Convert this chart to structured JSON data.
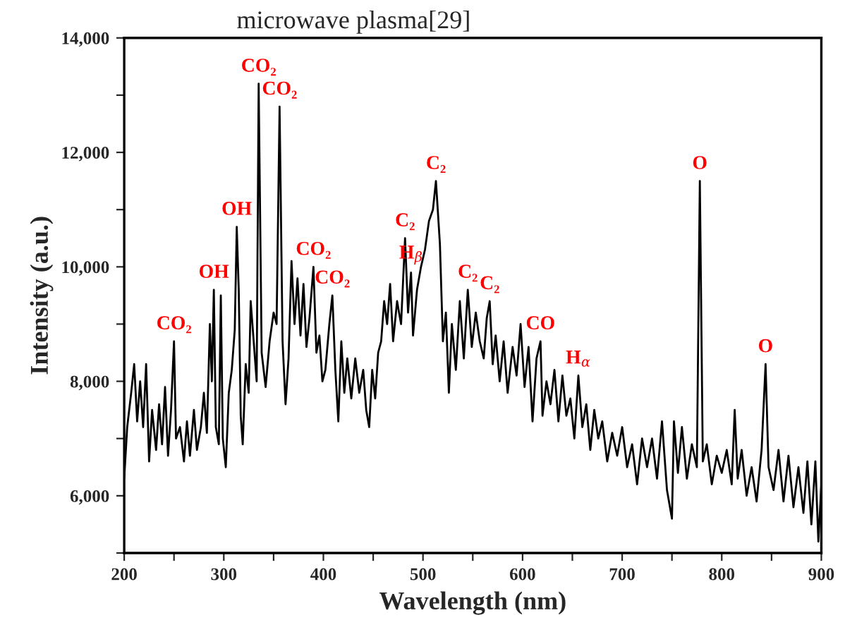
{
  "chart_data": {
    "type": "line",
    "title": "microwave plasma[29]",
    "xlabel": "Wavelength (nm)",
    "ylabel": "Intensity (a.u.)",
    "x": [
      200,
      203,
      207,
      210,
      213,
      216,
      219,
      222,
      225,
      228,
      232,
      235,
      238,
      241,
      244,
      247,
      250,
      252,
      256,
      260,
      263,
      266,
      270,
      273,
      277,
      280,
      283,
      286,
      288,
      290,
      292,
      295,
      297,
      299,
      302,
      305,
      308,
      311,
      313,
      315,
      317,
      319,
      322,
      325,
      327,
      330,
      333,
      335,
      338,
      342,
      346,
      350,
      353,
      356,
      359,
      362,
      365,
      368,
      371,
      374,
      377,
      380,
      383,
      386,
      390,
      393,
      396,
      399,
      402,
      406,
      409,
      412,
      415,
      418,
      421,
      424,
      428,
      432,
      436,
      440,
      443,
      446,
      449,
      452,
      455,
      458,
      461,
      464,
      467,
      470,
      474,
      478,
      482,
      485,
      488,
      490,
      494,
      498,
      502,
      506,
      510,
      513,
      517,
      520,
      523,
      526,
      529,
      533,
      537,
      541,
      545,
      549,
      553,
      557,
      561,
      564,
      567,
      570,
      573,
      577,
      581,
      585,
      590,
      594,
      598,
      602,
      606,
      610,
      614,
      618,
      620,
      624,
      628,
      632,
      636,
      640,
      644,
      648,
      652,
      656,
      660,
      664,
      668,
      672,
      676,
      680,
      685,
      690,
      695,
      700,
      705,
      710,
      715,
      720,
      725,
      730,
      735,
      740,
      745,
      750,
      752,
      756,
      760,
      765,
      770,
      775,
      778,
      781,
      785,
      790,
      795,
      800,
      805,
      810,
      813,
      816,
      820,
      825,
      830,
      835,
      840,
      844,
      847,
      852,
      857,
      862,
      867,
      872,
      877,
      882,
      886,
      890,
      894,
      897,
      900
    ],
    "series": [
      {
        "color": "#000000",
        "values": [
          6300,
          7200,
          7800,
          8300,
          7300,
          8000,
          7200,
          8300,
          6600,
          7500,
          6800,
          7600,
          6900,
          7900,
          6700,
          7500,
          8700,
          7000,
          7200,
          6600,
          7300,
          6700,
          7500,
          6800,
          7200,
          7800,
          7100,
          9000,
          8000,
          9600,
          7200,
          6900,
          9500,
          7000,
          6500,
          7800,
          8200,
          8900,
          10700,
          9600,
          7400,
          6900,
          8300,
          7800,
          9400,
          8700,
          8000,
          13200,
          8500,
          7900,
          8700,
          9200,
          9000,
          12800,
          8700,
          7600,
          8400,
          10100,
          9000,
          9800,
          8800,
          9700,
          8600,
          9100,
          10000,
          8500,
          8800,
          8000,
          8200,
          9000,
          9500,
          8200,
          7300,
          8700,
          7800,
          8400,
          7700,
          8400,
          7800,
          8200,
          7500,
          7200,
          8200,
          7700,
          8500,
          8700,
          9400,
          9000,
          9700,
          8700,
          9400,
          9000,
          10500,
          9200,
          9900,
          8800,
          9600,
          10000,
          10300,
          10800,
          11000,
          11500,
          10400,
          8700,
          9200,
          7800,
          9000,
          8200,
          9400,
          8400,
          9600,
          8600,
          9200,
          8700,
          8400,
          9100,
          9400,
          8300,
          8800,
          8000,
          8700,
          7800,
          8600,
          8100,
          9000,
          7900,
          8600,
          7300,
          8400,
          8700,
          7400,
          8000,
          7600,
          8200,
          7300,
          8100,
          7400,
          7700,
          7000,
          8100,
          7200,
          7600,
          6800,
          7500,
          7000,
          7300,
          6600,
          7100,
          6700,
          7200,
          6500,
          6900,
          6200,
          7000,
          6500,
          7000,
          6300,
          7300,
          6100,
          5600,
          7300,
          6400,
          7200,
          6300,
          6900,
          6500,
          11500,
          6600,
          6900,
          6200,
          6700,
          6400,
          6800,
          6200,
          7500,
          6300,
          6800,
          6000,
          6500,
          5900,
          6800,
          8300,
          6500,
          6100,
          6800,
          5900,
          6700,
          5800,
          6500,
          5700,
          6600,
          5500,
          6600,
          5200,
          6200
        ]
      }
    ],
    "xlim": [
      200,
      900
    ],
    "xticks": [
      200,
      {
        "value": 250,
        "label": null
      },
      300,
      {
        "value": 350,
        "label": null
      },
      400,
      {
        "value": 450,
        "label": null
      },
      500,
      {
        "value": 550,
        "label": null
      },
      600,
      {
        "value": 650,
        "label": null
      },
      700,
      {
        "value": 750,
        "label": null
      },
      800,
      {
        "value": 850,
        "label": null
      },
      900
    ],
    "ylim": [
      5000,
      14000
    ],
    "yticks": [
      {
        "value": 5000,
        "label": null
      },
      {
        "value": 6000,
        "label": "6,000"
      },
      {
        "value": 7000,
        "label": null
      },
      {
        "value": 8000,
        "label": "8,000"
      },
      {
        "value": 9000,
        "label": null
      },
      {
        "value": 10000,
        "label": "10,000"
      },
      {
        "value": 11000,
        "label": null
      },
      {
        "value": 12000,
        "label": "12,000"
      },
      {
        "value": 13000,
        "label": null
      },
      {
        "value": 14000,
        "label": "14,000"
      }
    ],
    "grid": false,
    "legend": false,
    "marker": "none",
    "line_style": "solid",
    "annotations": [
      {
        "text": "CO₂",
        "x": 250,
        "y": 8700
      },
      {
        "text": "OH",
        "x": 290,
        "y": 9600
      },
      {
        "text": "OH",
        "x": 313,
        "y": 10700
      },
      {
        "text": "CO₂",
        "x": 335,
        "y": 13200
      },
      {
        "text": "CO₂",
        "x": 356,
        "y": 12800
      },
      {
        "text": "CO₂",
        "x": 390,
        "y": 10000
      },
      {
        "text": "CO₂",
        "x": 409,
        "y": 9500
      },
      {
        "text": "C₂",
        "x": 482,
        "y": 10500
      },
      {
        "text": "H$_{β}$",
        "x": 488,
        "y": 9900
      },
      {
        "text": "C₂",
        "x": 513,
        "y": 11500
      },
      {
        "text": "C₂",
        "x": 545,
        "y": 9600
      },
      {
        "text": "C₂",
        "x": 567,
        "y": 9400
      },
      {
        "text": "CO",
        "x": 618,
        "y": 8700
      },
      {
        "text": "H$_{α}$",
        "x": 656,
        "y": 8100
      },
      {
        "text": "O",
        "x": 778,
        "y": 11500
      },
      {
        "text": "O",
        "x": 844,
        "y": 8300
      }
    ]
  }
}
